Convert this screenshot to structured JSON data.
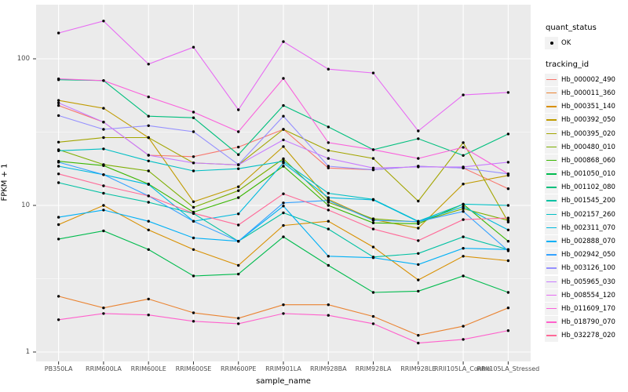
{
  "chart_data": {
    "type": "line",
    "title": "",
    "xlabel": "sample_name",
    "ylabel": "FPKM + 1",
    "y_scale": "log10",
    "ylim": [
      0.87,
      234
    ],
    "y_ticks": [
      "1",
      "10",
      "100"
    ],
    "y_minor_gridlines": [
      3.162,
      31.62
    ],
    "grid": "on",
    "legend_position": "right",
    "panel_bg": "#EBEBEB",
    "grid_color": "#FFFFFF",
    "point_color": "#000000",
    "axis_text_color": "#4D4D4D",
    "categories": [
      "PB350LA",
      "RRIM600LA",
      "RRIM600LE",
      "RRIM600SE",
      "RRIM600PE",
      "RRIM901LA",
      "RRIM928BA",
      "RRIM928LA",
      "RRIM928LE",
      "RRII105LA_Control",
      "RRII105LA_Stressed"
    ],
    "legend": {
      "quant_status_title": "quant_status",
      "quant_status_items": [
        {
          "label": "OK",
          "marker": "black-point"
        }
      ],
      "tracking_title": "tracking_id"
    },
    "series": [
      {
        "name": "Hb_000002_490",
        "color": "#F8766D",
        "values": [
          48,
          37,
          22,
          21.5,
          25,
          33,
          18,
          17.5,
          18.5,
          18,
          13
        ]
      },
      {
        "name": "Hb_000011_360",
        "color": "#EA8331",
        "values": [
          2.4,
          2.0,
          2.3,
          1.85,
          1.7,
          2.1,
          2.1,
          1.75,
          1.3,
          1.5,
          2.0
        ]
      },
      {
        "name": "Hb_000351_140",
        "color": "#D89000",
        "values": [
          7.4,
          10,
          6.8,
          5.0,
          3.9,
          7.3,
          7.8,
          5.2,
          3.1,
          4.5,
          4.2
        ]
      },
      {
        "name": "Hb_000392_050",
        "color": "#C09B00",
        "values": [
          52,
          46,
          29,
          10.6,
          13.4,
          25.2,
          11,
          8,
          7,
          14,
          16
        ]
      },
      {
        "name": "Hb_000395_020",
        "color": "#A3A500",
        "values": [
          27,
          29,
          29,
          19.5,
          18.9,
          33,
          23.7,
          20.9,
          10.7,
          26.8,
          7.7
        ]
      },
      {
        "name": "Hb_000480_010",
        "color": "#7CAE00",
        "values": [
          24,
          19,
          17.2,
          9.7,
          12.6,
          20.8,
          10.5,
          8.1,
          7.7,
          9.5,
          7.9
        ]
      },
      {
        "name": "Hb_000868_060",
        "color": "#39B600",
        "values": [
          20,
          18.7,
          14,
          9.0,
          11.3,
          18.5,
          10,
          7.6,
          7.5,
          10.2,
          5.7
        ]
      },
      {
        "name": "Hb_001050_010",
        "color": "#00BB4E",
        "values": [
          5.9,
          6.7,
          5.0,
          3.3,
          3.4,
          6.1,
          3.9,
          2.55,
          2.6,
          3.3,
          2.55
        ]
      },
      {
        "name": "Hb_001102_080",
        "color": "#00BF7D",
        "values": [
          72,
          71,
          40.6,
          39.6,
          22.2,
          48,
          34.3,
          24,
          28.5,
          21.9,
          30.7
        ]
      },
      {
        "name": "Hb_001545_200",
        "color": "#00C1A3",
        "values": [
          14.3,
          12.1,
          10.5,
          8.8,
          5.7,
          8.9,
          6.9,
          4.45,
          4.7,
          6.1,
          5.0
        ]
      },
      {
        "name": "Hb_002157_260",
        "color": "#00BFC4",
        "values": [
          23.6,
          24.3,
          20.1,
          17.2,
          17.8,
          20,
          12.1,
          11,
          7.8,
          10.2,
          10
        ]
      },
      {
        "name": "Hb_002311_070",
        "color": "#00BADE",
        "values": [
          18.5,
          16.2,
          13.9,
          7.8,
          8.75,
          19.5,
          11.3,
          10.9,
          7.75,
          9.8,
          6.8
        ]
      },
      {
        "name": "Hb_002888_070",
        "color": "#00B0F6",
        "values": [
          8.3,
          9.3,
          7.8,
          6.0,
          5.7,
          9.9,
          4.5,
          4.4,
          3.95,
          5.1,
          5.0
        ]
      },
      {
        "name": "Hb_002942_050",
        "color": "#35A2FF",
        "values": [
          19.7,
          16.2,
          11.6,
          7.8,
          5.7,
          10.4,
          10.8,
          7.9,
          7.75,
          9.1,
          4.9
        ]
      },
      {
        "name": "Hb_003126_100",
        "color": "#9590FF",
        "values": [
          41,
          33,
          35,
          31.8,
          19,
          40.6,
          18.5,
          17.5,
          18.5,
          18,
          16.4
        ]
      },
      {
        "name": "Hb_005965_030",
        "color": "#C77CFF",
        "values": [
          50,
          37,
          22,
          19.5,
          18.9,
          28,
          20.9,
          18,
          18.3,
          18.3,
          19.7
        ]
      },
      {
        "name": "Hb_008554_120",
        "color": "#E76BF3",
        "values": [
          150,
          181,
          92,
          120,
          44.9,
          131,
          85,
          80,
          32.2,
          56.7,
          59
        ]
      },
      {
        "name": "Hb_011609_170",
        "color": "#FA62DB",
        "values": [
          73,
          71,
          55,
          43.3,
          31.8,
          73.5,
          26.8,
          24,
          20.9,
          24.9,
          16.4
        ]
      },
      {
        "name": "Hb_018790_070",
        "color": "#FF61CC",
        "values": [
          1.66,
          1.83,
          1.79,
          1.62,
          1.56,
          1.83,
          1.78,
          1.56,
          1.15,
          1.22,
          1.4
        ]
      },
      {
        "name": "Hb_032278_020",
        "color": "#FF6A98",
        "values": [
          16.4,
          13.6,
          11.6,
          8.85,
          7.35,
          12,
          9.3,
          6.9,
          5.75,
          8.0,
          8.2
        ]
      }
    ]
  }
}
